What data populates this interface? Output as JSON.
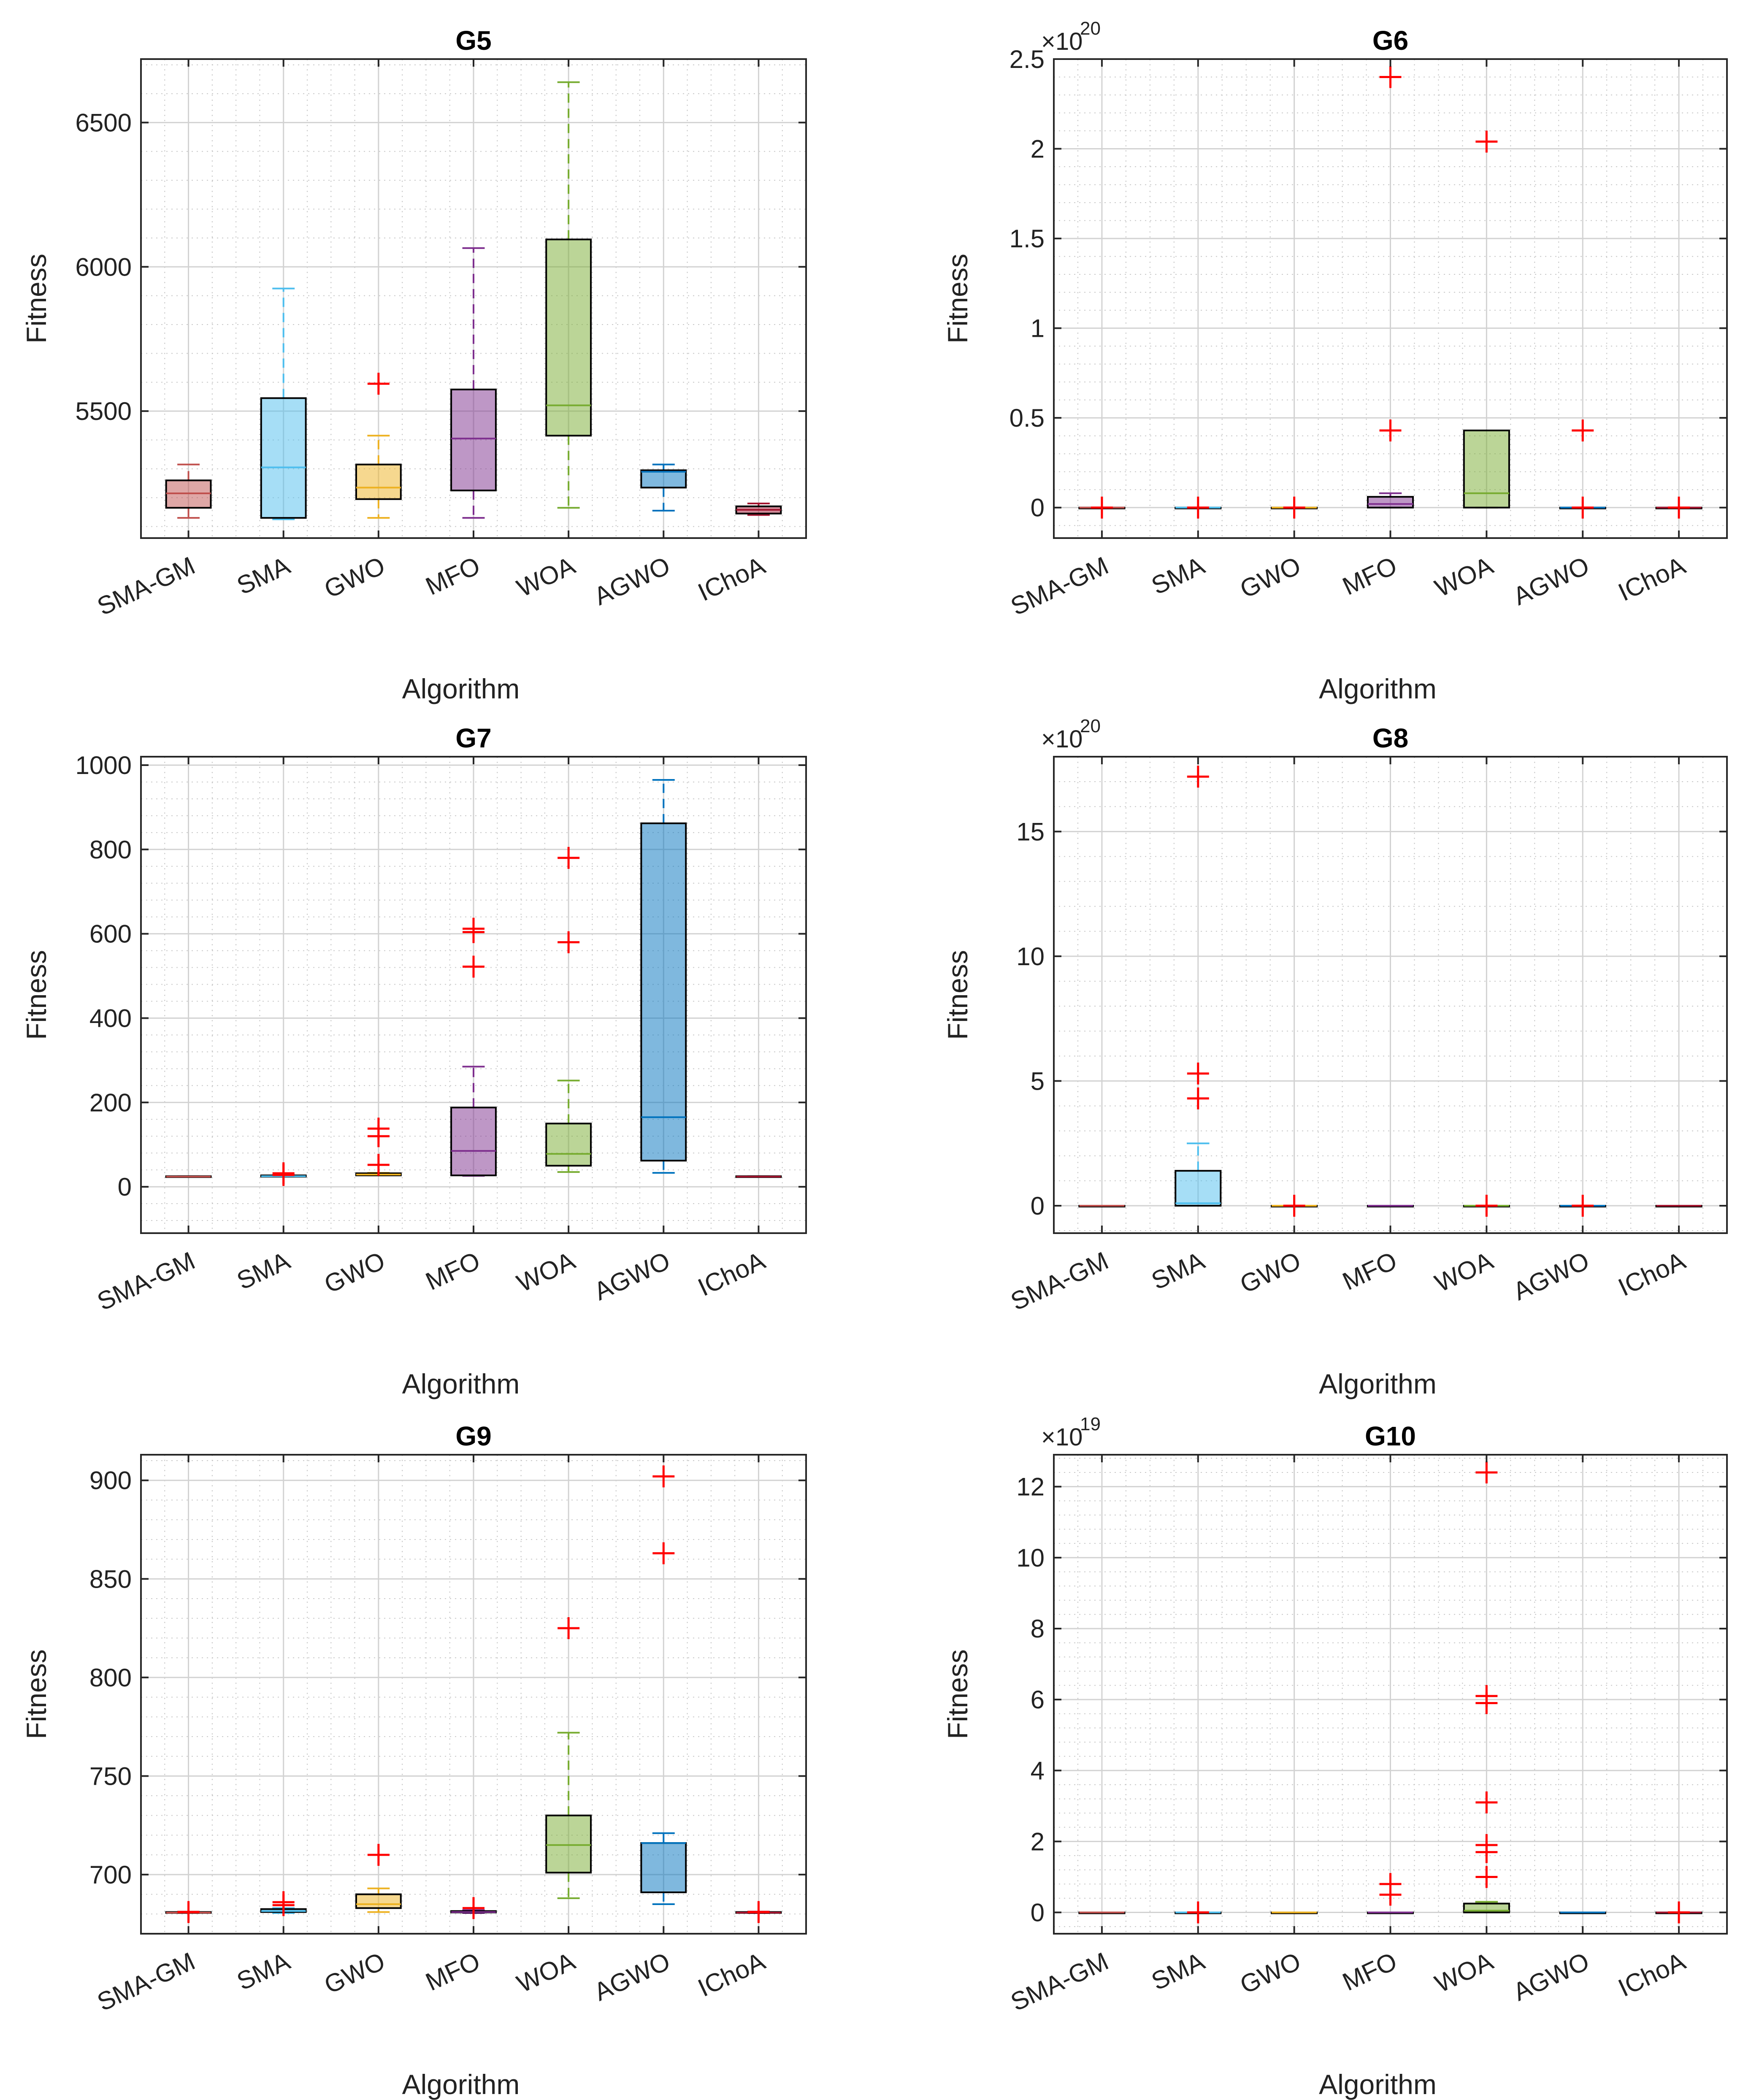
{
  "chart_data": [
    {
      "id": "G5",
      "type": "box",
      "title": "G5",
      "xlabel": "Algorithm",
      "ylabel": "Fitness",
      "categories": [
        "SMA-GM",
        "SMA",
        "GWO",
        "MFO",
        "WOA",
        "AGWO",
        "IChoA"
      ],
      "ylim": [
        5060,
        6720
      ],
      "yticks": [
        5500,
        6000,
        6500
      ],
      "ytick_labels": [
        "5500",
        "6000",
        "6500"
      ],
      "exponent": "",
      "boxes": [
        {
          "category": "SMA-GM",
          "color": "#c0504d",
          "whisker_low": 5130,
          "q1": 5165,
          "median": 5215,
          "q3": 5260,
          "whisker_high": 5315,
          "outliers": []
        },
        {
          "category": "SMA",
          "color": "#4dbeee",
          "whisker_low": 5125,
          "q1": 5130,
          "median": 5305,
          "q3": 5545,
          "whisker_high": 5925,
          "outliers": []
        },
        {
          "category": "GWO",
          "color": "#edb120",
          "whisker_low": 5130,
          "q1": 5195,
          "median": 5235,
          "q3": 5315,
          "whisker_high": 5415,
          "outliers": [
            5595
          ]
        },
        {
          "category": "MFO",
          "color": "#7e2f8e",
          "whisker_low": 5130,
          "q1": 5225,
          "median": 5405,
          "q3": 5575,
          "whisker_high": 6065,
          "outliers": []
        },
        {
          "category": "WOA",
          "color": "#77ac30",
          "whisker_low": 5165,
          "q1": 5415,
          "median": 5520,
          "q3": 6095,
          "whisker_high": 6640,
          "outliers": []
        },
        {
          "category": "AGWO",
          "color": "#0072bd",
          "whisker_low": 5155,
          "q1": 5235,
          "median": 5290,
          "q3": 5295,
          "whisker_high": 5315,
          "outliers": []
        },
        {
          "category": "IChoA",
          "color": "#a2142f",
          "whisker_low": 5140,
          "q1": 5145,
          "median": 5158,
          "q3": 5170,
          "whisker_high": 5180,
          "outliers": []
        }
      ]
    },
    {
      "id": "G6",
      "type": "box",
      "title": "G6",
      "xlabel": "Algorithm",
      "ylabel": "Fitness",
      "categories": [
        "SMA-GM",
        "SMA",
        "GWO",
        "MFO",
        "WOA",
        "AGWO",
        "IChoA"
      ],
      "ylim": [
        -0.17,
        2.5
      ],
      "yticks": [
        0,
        0.5,
        1,
        1.5,
        2,
        2.5
      ],
      "ytick_labels": [
        "0",
        "0.5",
        "1",
        "1.5",
        "2",
        "2.5"
      ],
      "exponent": "20",
      "boxes": [
        {
          "category": "SMA-GM",
          "color": "#c0504d",
          "whisker_low": 0,
          "q1": 0,
          "median": 0,
          "q3": 0,
          "whisker_high": 0,
          "outliers": [
            0
          ]
        },
        {
          "category": "SMA",
          "color": "#4dbeee",
          "whisker_low": 0,
          "q1": 0,
          "median": 0,
          "q3": 0,
          "whisker_high": 0,
          "outliers": [
            0
          ]
        },
        {
          "category": "GWO",
          "color": "#edb120",
          "whisker_low": 0,
          "q1": 0,
          "median": 0,
          "q3": 0,
          "whisker_high": 0,
          "outliers": [
            0
          ]
        },
        {
          "category": "MFO",
          "color": "#7e2f8e",
          "whisker_low": 0,
          "q1": 0,
          "median": 0.02,
          "q3": 0.06,
          "whisker_high": 0.08,
          "outliers": [
            0.43,
            2.4
          ]
        },
        {
          "category": "WOA",
          "color": "#77ac30",
          "whisker_low": 0,
          "q1": 0,
          "median": 0.08,
          "q3": 0.43,
          "whisker_high": 0.43,
          "outliers": [
            2.04
          ]
        },
        {
          "category": "AGWO",
          "color": "#0072bd",
          "whisker_low": 0,
          "q1": 0,
          "median": 0,
          "q3": 0,
          "whisker_high": 0,
          "outliers": [
            0,
            0.43
          ]
        },
        {
          "category": "IChoA",
          "color": "#a2142f",
          "whisker_low": 0,
          "q1": 0,
          "median": 0,
          "q3": 0,
          "whisker_high": 0,
          "outliers": [
            0
          ]
        }
      ]
    },
    {
      "id": "G7",
      "type": "box",
      "title": "G7",
      "xlabel": "Algorithm",
      "ylabel": "Fitness",
      "categories": [
        "SMA-GM",
        "SMA",
        "GWO",
        "MFO",
        "WOA",
        "AGWO",
        "IChoA"
      ],
      "ylim": [
        -110,
        1020
      ],
      "yticks": [
        0,
        200,
        400,
        600,
        800,
        1000
      ],
      "ytick_labels": [
        "0",
        "200",
        "400",
        "600",
        "800",
        "1000"
      ],
      "exponent": "",
      "boxes": [
        {
          "category": "SMA-GM",
          "color": "#c0504d",
          "whisker_low": 24,
          "q1": 24,
          "median": 24,
          "q3": 25,
          "whisker_high": 25,
          "outliers": []
        },
        {
          "category": "SMA",
          "color": "#4dbeee",
          "whisker_low": 24,
          "q1": 24,
          "median": 25,
          "q3": 27,
          "whisker_high": 28,
          "outliers": [
            32,
            28
          ]
        },
        {
          "category": "GWO",
          "color": "#edb120",
          "whisker_low": 27,
          "q1": 27,
          "median": 29,
          "q3": 32,
          "whisker_high": 33,
          "outliers": [
            52,
            120,
            138
          ]
        },
        {
          "category": "MFO",
          "color": "#7e2f8e",
          "whisker_low": 26,
          "q1": 27,
          "median": 85,
          "q3": 188,
          "whisker_high": 285,
          "outliers": [
            522,
            604,
            612
          ]
        },
        {
          "category": "WOA",
          "color": "#77ac30",
          "whisker_low": 35,
          "q1": 50,
          "median": 78,
          "q3": 150,
          "whisker_high": 252,
          "outliers": [
            580,
            780
          ]
        },
        {
          "category": "AGWO",
          "color": "#0072bd",
          "whisker_low": 33,
          "q1": 62,
          "median": 165,
          "q3": 862,
          "whisker_high": 965,
          "outliers": []
        },
        {
          "category": "IChoA",
          "color": "#a2142f",
          "whisker_low": 24,
          "q1": 24,
          "median": 24,
          "q3": 25,
          "whisker_high": 25,
          "outliers": []
        }
      ]
    },
    {
      "id": "G8",
      "type": "box",
      "title": "G8",
      "xlabel": "Algorithm",
      "ylabel": "Fitness",
      "categories": [
        "SMA-GM",
        "SMA",
        "GWO",
        "MFO",
        "WOA",
        "AGWO",
        "IChoA"
      ],
      "ylim": [
        -1.1,
        18
      ],
      "yticks": [
        0,
        5,
        10,
        15
      ],
      "ytick_labels": [
        "0",
        "5",
        "10",
        "15"
      ],
      "exponent": "20",
      "boxes": [
        {
          "category": "SMA-GM",
          "color": "#c0504d",
          "whisker_low": 0,
          "q1": 0,
          "median": 0,
          "q3": 0,
          "whisker_high": 0,
          "outliers": []
        },
        {
          "category": "SMA",
          "color": "#4dbeee",
          "whisker_low": 0,
          "q1": 0,
          "median": 0.1,
          "q3": 1.4,
          "whisker_high": 2.5,
          "outliers": [
            4.3,
            5.3,
            17.2
          ]
        },
        {
          "category": "GWO",
          "color": "#edb120",
          "whisker_low": 0,
          "q1": 0,
          "median": 0,
          "q3": 0,
          "whisker_high": 0,
          "outliers": [
            0
          ]
        },
        {
          "category": "MFO",
          "color": "#7e2f8e",
          "whisker_low": 0,
          "q1": 0,
          "median": 0,
          "q3": 0,
          "whisker_high": 0,
          "outliers": []
        },
        {
          "category": "WOA",
          "color": "#77ac30",
          "whisker_low": 0,
          "q1": 0,
          "median": 0,
          "q3": 0,
          "whisker_high": 0,
          "outliers": [
            0
          ]
        },
        {
          "category": "AGWO",
          "color": "#0072bd",
          "whisker_low": 0,
          "q1": 0,
          "median": 0,
          "q3": 0,
          "whisker_high": 0,
          "outliers": [
            0
          ]
        },
        {
          "category": "IChoA",
          "color": "#a2142f",
          "whisker_low": 0,
          "q1": 0,
          "median": 0,
          "q3": 0,
          "whisker_high": 0,
          "outliers": []
        }
      ]
    },
    {
      "id": "G9",
      "type": "box",
      "title": "G9",
      "xlabel": "Algorithm",
      "ylabel": "Fitness",
      "categories": [
        "SMA-GM",
        "SMA",
        "GWO",
        "MFO",
        "WOA",
        "AGWO",
        "IChoA"
      ],
      "ylim": [
        670,
        913
      ],
      "yticks": [
        700,
        750,
        800,
        850,
        900
      ],
      "ytick_labels": [
        "700",
        "750",
        "800",
        "850",
        "900"
      ],
      "exponent": "",
      "boxes": [
        {
          "category": "SMA-GM",
          "color": "#c0504d",
          "whisker_low": 680.5,
          "q1": 680.6,
          "median": 680.7,
          "q3": 681,
          "whisker_high": 681.2,
          "outliers": [
            681
          ]
        },
        {
          "category": "SMA",
          "color": "#4dbeee",
          "whisker_low": 680.5,
          "q1": 681,
          "median": 681.5,
          "q3": 682.5,
          "whisker_high": 683,
          "outliers": [
            684.5,
            686
          ]
        },
        {
          "category": "GWO",
          "color": "#edb120",
          "whisker_low": 681,
          "q1": 683,
          "median": 685,
          "q3": 690,
          "whisker_high": 693,
          "outliers": [
            710
          ]
        },
        {
          "category": "MFO",
          "color": "#7e2f8e",
          "whisker_low": 680.5,
          "q1": 680.8,
          "median": 681,
          "q3": 681.5,
          "whisker_high": 682,
          "outliers": [
            683
          ]
        },
        {
          "category": "WOA",
          "color": "#77ac30",
          "whisker_low": 688,
          "q1": 701,
          "median": 715,
          "q3": 730,
          "whisker_high": 772,
          "outliers": [
            825
          ]
        },
        {
          "category": "AGWO",
          "color": "#0072bd",
          "whisker_low": 685,
          "q1": 691,
          "median": 716,
          "q3": 716,
          "whisker_high": 721,
          "outliers": [
            863,
            902
          ]
        },
        {
          "category": "IChoA",
          "color": "#a2142f",
          "whisker_low": 680.5,
          "q1": 680.6,
          "median": 680.7,
          "q3": 681,
          "whisker_high": 681.2,
          "outliers": [
            681
          ]
        }
      ]
    },
    {
      "id": "G10",
      "type": "box",
      "title": "G10",
      "xlabel": "Algorithm",
      "ylabel": "Fitness",
      "categories": [
        "SMA-GM",
        "SMA",
        "GWO",
        "MFO",
        "WOA",
        "AGWO",
        "IChoA"
      ],
      "ylim": [
        -0.6,
        12.9
      ],
      "yticks": [
        0,
        2,
        4,
        6,
        8,
        10,
        12
      ],
      "ytick_labels": [
        "0",
        "2",
        "4",
        "6",
        "8",
        "10",
        "12"
      ],
      "exponent": "19",
      "boxes": [
        {
          "category": "SMA-GM",
          "color": "#c0504d",
          "whisker_low": 0,
          "q1": 0,
          "median": 0,
          "q3": 0,
          "whisker_high": 0,
          "outliers": []
        },
        {
          "category": "SMA",
          "color": "#4dbeee",
          "whisker_low": 0,
          "q1": 0,
          "median": 0,
          "q3": 0,
          "whisker_high": 0,
          "outliers": [
            0
          ]
        },
        {
          "category": "GWO",
          "color": "#edb120",
          "whisker_low": 0,
          "q1": 0,
          "median": 0,
          "q3": 0,
          "whisker_high": 0,
          "outliers": []
        },
        {
          "category": "MFO",
          "color": "#7e2f8e",
          "whisker_low": 0,
          "q1": 0,
          "median": 0,
          "q3": 0,
          "whisker_high": 0,
          "outliers": [
            0.5,
            0.8
          ]
        },
        {
          "category": "WOA",
          "color": "#77ac30",
          "whisker_low": 0,
          "q1": 0,
          "median": 0.05,
          "q3": 0.25,
          "whisker_high": 0.3,
          "outliers": [
            1.0,
            1.7,
            1.9,
            3.1,
            5.9,
            6.1,
            12.4
          ]
        },
        {
          "category": "AGWO",
          "color": "#0072bd",
          "whisker_low": 0,
          "q1": 0,
          "median": 0,
          "q3": 0,
          "whisker_high": 0,
          "outliers": []
        },
        {
          "category": "IChoA",
          "color": "#a2142f",
          "whisker_low": 0,
          "q1": 0,
          "median": 0,
          "q3": 0,
          "whisker_high": 0,
          "outliers": [
            0
          ]
        }
      ]
    }
  ]
}
